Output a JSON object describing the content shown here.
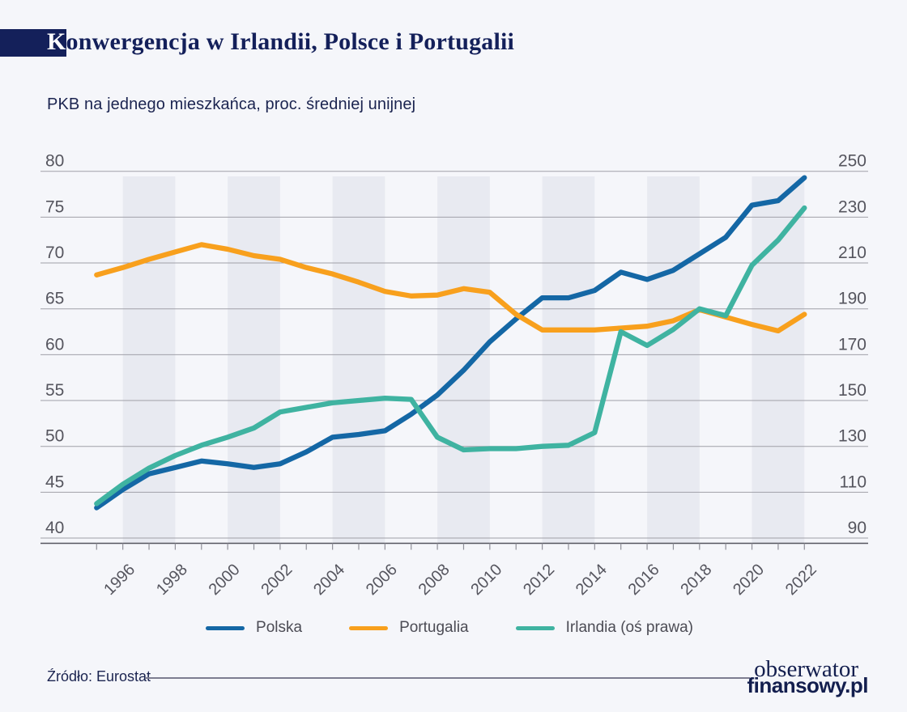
{
  "title": {
    "initial": "K",
    "rest": "onwergencja w Irlandii, Polsce i Portugalii"
  },
  "subtitle": "PKB na jednego mieszkańca, proc. średniej unijnej",
  "source": "Źródło: Eurostat",
  "logo": {
    "line1": "obserwator",
    "line2": "finansowy.pl"
  },
  "colors": {
    "background": "#f5f6fa",
    "accent_navy": "#14205a",
    "band": "#e8eaf1",
    "gridline": "#a0a0a8",
    "axis_line": "#55555e",
    "tick": "#8f8f98",
    "axis_label": "#55555e",
    "polska": "#1467a5",
    "portugalia": "#f8a01d",
    "irlandia": "#3fb3a1"
  },
  "chart_data": {
    "type": "line",
    "title": "PKB na jednego mieszkańca, proc. średniej unijnej",
    "x": [
      1995,
      1996,
      1997,
      1998,
      1999,
      2000,
      2001,
      2002,
      2003,
      2004,
      2005,
      2006,
      2007,
      2008,
      2009,
      2010,
      2011,
      2012,
      2013,
      2014,
      2015,
      2016,
      2017,
      2018,
      2019,
      2020,
      2021,
      2022
    ],
    "x_tick_years": [
      1996,
      1998,
      2000,
      2002,
      2004,
      2006,
      2008,
      2010,
      2012,
      2014,
      2016,
      2018,
      2020,
      2022
    ],
    "left_axis": {
      "min": 40,
      "max": 80,
      "step": 5,
      "ticks": [
        80,
        75,
        70,
        65,
        60,
        55,
        50,
        45,
        40
      ]
    },
    "right_axis": {
      "min": 90,
      "max": 250,
      "step": 20,
      "ticks": [
        250,
        230,
        210,
        190,
        170,
        150,
        130,
        110,
        90
      ]
    },
    "grid": true,
    "legend_position": "bottom",
    "shaded_bands": [
      [
        1996,
        1998
      ],
      [
        2000,
        2002
      ],
      [
        2004,
        2006
      ],
      [
        2008,
        2010
      ],
      [
        2012,
        2014
      ],
      [
        2016,
        2018
      ],
      [
        2020,
        2022
      ]
    ],
    "series": [
      {
        "name": "Polska",
        "axis": "left",
        "color": "#1467a5",
        "values": [
          43.3,
          45.3,
          47.0,
          47.7,
          48.4,
          48.1,
          47.7,
          48.1,
          49.4,
          51.0,
          51.3,
          51.7,
          53.5,
          55.6,
          58.3,
          61.4,
          63.9,
          66.2,
          66.2,
          67.0,
          69.0,
          68.2,
          69.2,
          71.0,
          72.8,
          76.3,
          76.8,
          79.3
        ]
      },
      {
        "name": "Portugalia",
        "axis": "left",
        "color": "#f8a01d",
        "values": [
          68.7,
          69.5,
          70.4,
          71.2,
          72.0,
          71.5,
          70.8,
          70.4,
          69.5,
          68.8,
          67.9,
          66.9,
          66.4,
          66.5,
          67.2,
          66.8,
          64.4,
          62.7,
          62.7,
          62.7,
          62.9,
          63.1,
          63.7,
          64.9,
          64.1,
          63.3,
          62.6,
          64.4
        ]
      },
      {
        "name": "Irlandia (oś prawa)",
        "axis": "right",
        "color": "#3fb3a1",
        "values": [
          105,
          113.5,
          120.5,
          126,
          130.5,
          134,
          138,
          145,
          147,
          149,
          150,
          151,
          150.5,
          134,
          128.5,
          129,
          129,
          130,
          130.5,
          136,
          180,
          174,
          181,
          190,
          187,
          209,
          220,
          234
        ]
      }
    ]
  }
}
